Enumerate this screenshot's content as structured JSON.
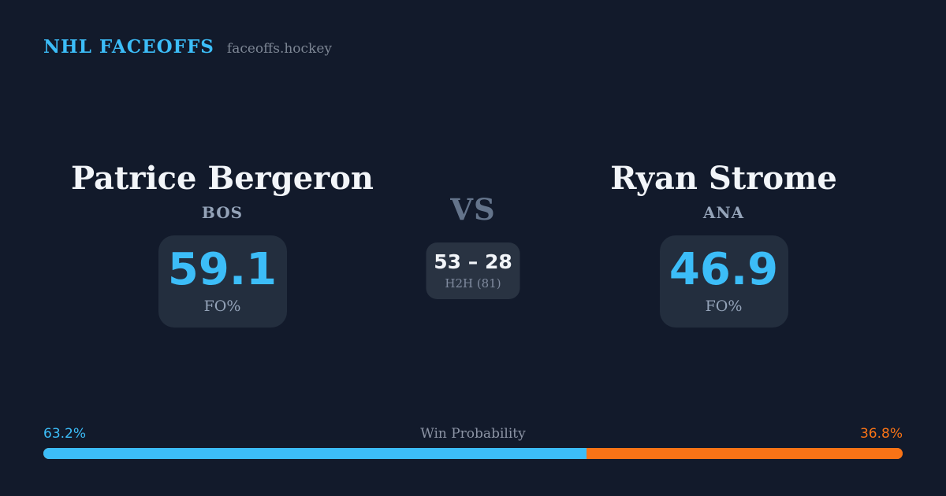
{
  "brand": {
    "title": "NHL FACEOFFS",
    "domain": "faceoffs.hockey"
  },
  "matchup": {
    "player1": {
      "name": "Patrice Bergeron",
      "team": "BOS",
      "stat_value": "59.1",
      "stat_label": "FO%"
    },
    "player2": {
      "name": "Ryan Strome",
      "team": "ANA",
      "stat_value": "46.9",
      "stat_label": "FO%"
    },
    "vs_label": "VS",
    "h2h": {
      "score": "53 – 28",
      "label": "H2H (81)"
    }
  },
  "win_probability": {
    "label": "Win Probability",
    "left_pct_label": "63.2%",
    "right_pct_label": "36.8%",
    "left_value": 63.2,
    "right_value": 36.8
  },
  "colors": {
    "background": "#121a2b",
    "card": "#232e3e",
    "h2h_card": "#293342",
    "accent_blue": "#3cbdf8",
    "accent_orange": "#f97316",
    "text_primary": "#f2f5f9",
    "text_muted": "#94a3b8",
    "text_muted2": "#8b93a4",
    "text_dim": "#64748b",
    "text_dim2": "#7d8694",
    "text_dim3": "#808b9f"
  }
}
